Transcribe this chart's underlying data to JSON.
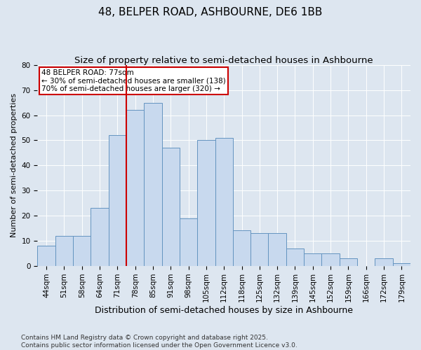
{
  "title": "48, BELPER ROAD, ASHBOURNE, DE6 1BB",
  "subtitle": "Size of property relative to semi-detached houses in Ashbourne",
  "xlabel": "Distribution of semi-detached houses by size in Ashbourne",
  "ylabel": "Number of semi-detached properties",
  "categories": [
    "44sqm",
    "51sqm",
    "58sqm",
    "64sqm",
    "71sqm",
    "78sqm",
    "85sqm",
    "91sqm",
    "98sqm",
    "105sqm",
    "112sqm",
    "118sqm",
    "125sqm",
    "132sqm",
    "139sqm",
    "145sqm",
    "152sqm",
    "159sqm",
    "166sqm",
    "172sqm",
    "179sqm"
  ],
  "bar_values": [
    8,
    12,
    12,
    23,
    52,
    62,
    65,
    47,
    19,
    50,
    51,
    14,
    13,
    13,
    7,
    5,
    5,
    3,
    0,
    3,
    1
  ],
  "bar_color": "#c8d9ee",
  "bar_edge_color": "#6494c0",
  "vline_color": "#cc0000",
  "annotation_text": "48 BELPER ROAD: 77sqm\n← 30% of semi-detached houses are smaller (138)\n70% of semi-detached houses are larger (320) →",
  "annotation_box_facecolor": "white",
  "annotation_box_edgecolor": "#cc0000",
  "ylim": [
    0,
    80
  ],
  "yticks": [
    0,
    10,
    20,
    30,
    40,
    50,
    60,
    70,
    80
  ],
  "background_color": "#dde6f0",
  "plot_background": "#dde6f0",
  "grid_color": "white",
  "footer": "Contains HM Land Registry data © Crown copyright and database right 2025.\nContains public sector information licensed under the Open Government Licence v3.0.",
  "title_fontsize": 11,
  "subtitle_fontsize": 9.5,
  "xlabel_fontsize": 9,
  "ylabel_fontsize": 8,
  "tick_fontsize": 7.5,
  "annotation_fontsize": 7.5,
  "footer_fontsize": 6.5,
  "vline_pos": 4.5
}
